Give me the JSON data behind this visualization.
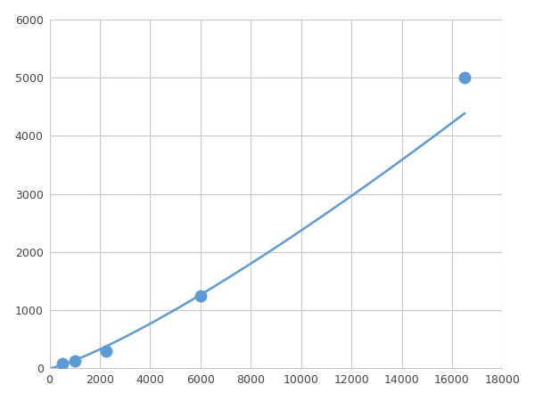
{
  "x_points": [
    500,
    1000,
    2250,
    6000,
    16500
  ],
  "y_points": [
    75,
    125,
    300,
    1250,
    5000
  ],
  "line_color": "#5b9bd5",
  "marker_color": "#5b9bd5",
  "marker_size": 6,
  "line_width": 1.8,
  "xlim": [
    0,
    18000
  ],
  "ylim": [
    0,
    6000
  ],
  "xticks": [
    0,
    2000,
    4000,
    6000,
    8000,
    10000,
    12000,
    14000,
    16000,
    18000
  ],
  "yticks": [
    0,
    1000,
    2000,
    3000,
    4000,
    5000,
    6000
  ],
  "grid_color": "#c8c8c8",
  "background_color": "#ffffff",
  "fig_width": 6.0,
  "fig_height": 4.5,
  "dpi": 100
}
